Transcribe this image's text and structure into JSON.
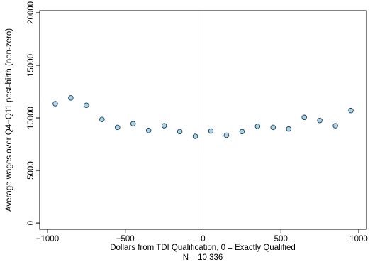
{
  "chart_data": {
    "type": "scatter",
    "xlabel": "Dollars from TDI Qualification, 0 = Exactly Qualified",
    "note": "N = 10,336",
    "ylabel": "Average wages over Q4−Q11 post-birth (non-zero)",
    "xlim": [
      -1050,
      1050
    ],
    "ylim": [
      -600,
      20200
    ],
    "x_ticks": [
      -1000,
      -500,
      0,
      500,
      1000
    ],
    "x_tick_labels": [
      "−1000",
      "−500",
      "0",
      "500",
      "1000"
    ],
    "y_ticks": [
      0,
      5000,
      10000,
      15000,
      20000
    ],
    "y_tick_labels": [
      "0",
      "5000",
      "10000",
      "15000",
      "20000"
    ],
    "reference_line_x": 0,
    "grid": false,
    "marker_fill": "#a9d3e6",
    "marker_stroke": "#1d3c55",
    "points": [
      {
        "x": -950,
        "y": 11350
      },
      {
        "x": -850,
        "y": 11900
      },
      {
        "x": -750,
        "y": 11200
      },
      {
        "x": -650,
        "y": 9850
      },
      {
        "x": -550,
        "y": 9100
      },
      {
        "x": -450,
        "y": 9450
      },
      {
        "x": -350,
        "y": 8800
      },
      {
        "x": -250,
        "y": 9250
      },
      {
        "x": -150,
        "y": 8700
      },
      {
        "x": -50,
        "y": 8250
      },
      {
        "x": 50,
        "y": 8750
      },
      {
        "x": 150,
        "y": 8350
      },
      {
        "x": 250,
        "y": 8700
      },
      {
        "x": 350,
        "y": 9200
      },
      {
        "x": 450,
        "y": 9100
      },
      {
        "x": 550,
        "y": 8950
      },
      {
        "x": 650,
        "y": 10050
      },
      {
        "x": 750,
        "y": 9750
      },
      {
        "x": 850,
        "y": 9250
      },
      {
        "x": 950,
        "y": 10700
      }
    ]
  }
}
